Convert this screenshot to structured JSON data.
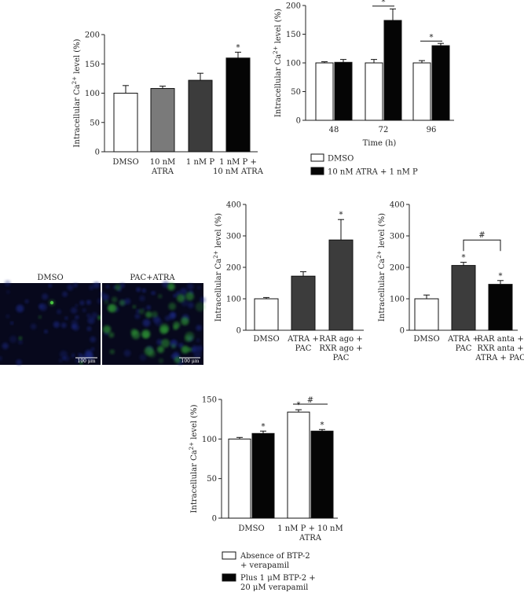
{
  "chart_data": [
    {
      "type": "bar",
      "ylabel": "Intracellular Ca²⁺ level (%)",
      "ylim": [
        0,
        200
      ],
      "yticks": [
        0,
        50,
        100,
        150,
        200
      ],
      "categories": [
        "DMSO",
        "10 nM\nATRA",
        "1 nM P",
        "1 nM P +\n10 nM ATRA"
      ],
      "values": [
        100,
        108,
        122,
        160
      ],
      "errors": [
        13,
        4,
        12,
        10
      ],
      "colors": [
        "#ffffff",
        "#7a7a7a",
        "#3c3c3c",
        "#050505"
      ],
      "stars": [
        "",
        "",
        "",
        "*"
      ],
      "sigbars": []
    },
    {
      "type": "bar",
      "ylabel": "Intracellular Ca²⁺ level (%)",
      "xlabel": "Time (h)",
      "ylim": [
        0,
        200
      ],
      "yticks": [
        0,
        50,
        100,
        150,
        200
      ],
      "categories": [
        "48",
        "72",
        "96"
      ],
      "series": [
        {
          "name": "DMSO",
          "color": "#ffffff",
          "values": [
            100,
            100,
            100
          ],
          "errors": [
            2,
            6,
            4
          ],
          "stars": [
            "",
            "",
            ""
          ]
        },
        {
          "name": "10 nM ATRA + 1 nM P",
          "color": "#050505",
          "values": [
            101,
            174,
            130
          ],
          "errors": [
            5,
            20,
            4
          ],
          "stars": [
            "",
            "",
            ""
          ]
        }
      ],
      "sigbars": [
        {
          "group": 1,
          "label": "*",
          "y": 199
        },
        {
          "group": 2,
          "label": "*",
          "y": 138
        }
      ],
      "legend": "bottom-left"
    },
    {
      "type": "bar",
      "ylabel": "Intracellular Ca²⁺ level (%)",
      "ylim": [
        0,
        400
      ],
      "yticks": [
        0,
        100,
        200,
        300,
        400
      ],
      "categories": [
        "DMSO",
        "ATRA +\nPAC",
        "RAR ago +\nRXR ago +\nPAC"
      ],
      "values": [
        100,
        172,
        287
      ],
      "errors": [
        4,
        14,
        65
      ],
      "colors": [
        "#ffffff",
        "#3c3c3c",
        "#3c3c3c"
      ],
      "stars": [
        "",
        "",
        "*"
      ],
      "sigbars": []
    },
    {
      "type": "bar",
      "ylabel": "Intracellular Ca²⁺ level (%)",
      "ylim": [
        0,
        400
      ],
      "yticks": [
        0,
        100,
        200,
        300,
        400
      ],
      "categories": [
        "DMSO",
        "ATRA +\nPAC",
        "RAR anta +\nRXR anta +\nATRA + PAC"
      ],
      "values": [
        100,
        206,
        146
      ],
      "errors": [
        12,
        10,
        12
      ],
      "colors": [
        "#ffffff",
        "#3c3c3c",
        "#050505"
      ],
      "stars": [
        "",
        "*",
        "*"
      ],
      "sigbars": [
        {
          "from": 1,
          "to": 2,
          "label": "#",
          "y": 287
        }
      ]
    },
    {
      "type": "bar",
      "ylabel": "Intracellular Ca²⁺ level (%)",
      "ylim": [
        0,
        150
      ],
      "yticks": [
        0,
        50,
        100,
        150
      ],
      "categories": [
        "DMSO",
        "1 nM P + 10 nM\nATRA"
      ],
      "series": [
        {
          "name": "Absence of BTP-2\n+ verapamil",
          "color": "#ffffff",
          "values": [
            100,
            134
          ],
          "errors": [
            2,
            3
          ],
          "stars": [
            "",
            "*"
          ]
        },
        {
          "name": "Plus 1 μM BTP-2 +\n20 μM verapamil",
          "color": "#050505",
          "values": [
            107,
            110
          ],
          "errors": [
            3,
            2
          ],
          "stars": [
            "*",
            "*"
          ]
        }
      ],
      "sigbars": [
        {
          "group": 1,
          "label": "#",
          "y": 144
        }
      ],
      "legend": "bottom-left"
    }
  ],
  "micrographs": {
    "panels": [
      {
        "label": "DMSO",
        "scale": "100 μm"
      },
      {
        "label": "PAC+ATRA",
        "scale": "100 μm"
      }
    ]
  }
}
